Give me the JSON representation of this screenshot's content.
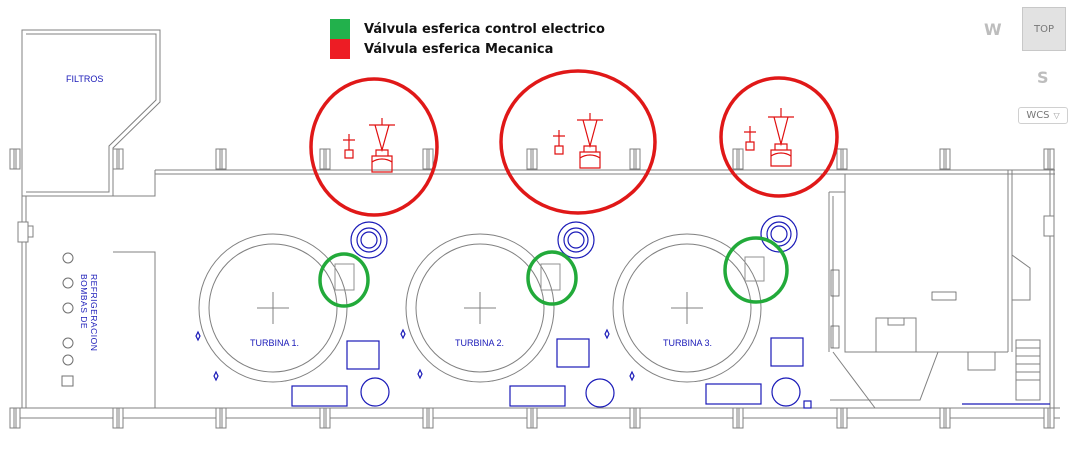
{
  "legend": {
    "items": [
      {
        "label": "Válvula esferica control electrico",
        "color": "#22b14c"
      },
      {
        "label": "Válvula esferica Mecanica",
        "color": "#ed1c24"
      }
    ]
  },
  "viewcube": {
    "west": "W",
    "south": "S",
    "top": "TOP",
    "wcs": "WCS"
  },
  "plan": {
    "filtros": "FILTROS",
    "bombas_line1": "BOMBAS DE",
    "bombas_line2": "REFRIGERACION",
    "turbines": [
      "TURBINA 1.",
      "TURBINA 2.",
      "TURBINA 3."
    ]
  },
  "colors": {
    "linework": "#808080",
    "blue": "#1a1ab8",
    "red_symbol": "#e01010",
    "red_ring": "#e01818",
    "green_ring": "#22aa3a"
  }
}
